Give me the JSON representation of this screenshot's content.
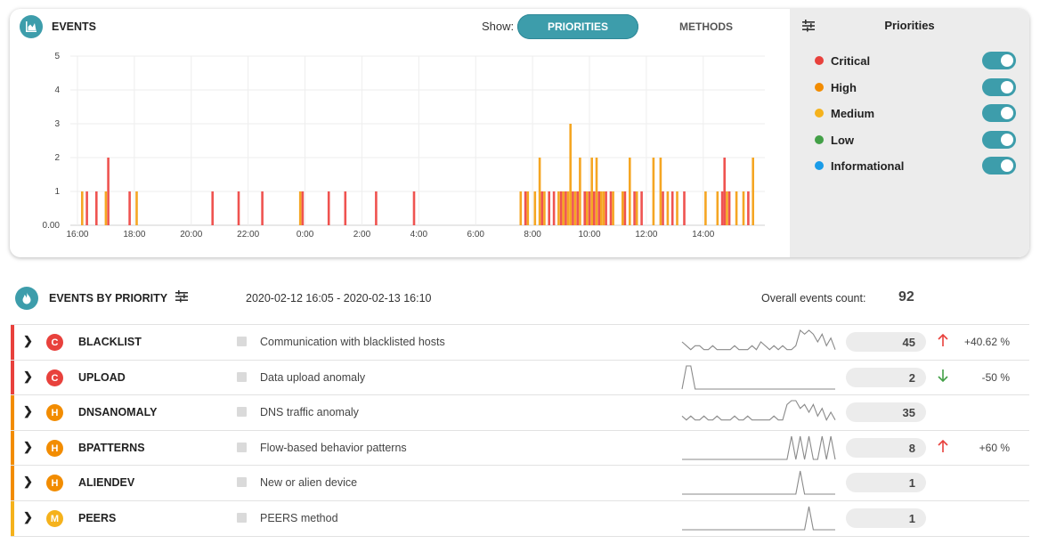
{
  "events_card": {
    "title": "EVENTS",
    "show_label": "Show:",
    "toggle_priorities": "PRIORITIES",
    "toggle_methods": "METHODS",
    "panel_title": "Priorities",
    "priorities": [
      {
        "label": "Critical",
        "color": "#e8413c",
        "enabled": true
      },
      {
        "label": "High",
        "color": "#f28c00",
        "enabled": true
      },
      {
        "label": "Medium",
        "color": "#f5b21c",
        "enabled": true
      },
      {
        "label": "Low",
        "color": "#43a047",
        "enabled": true
      },
      {
        "label": "Informational",
        "color": "#1a9ce8",
        "enabled": true
      }
    ]
  },
  "chart_data": {
    "type": "bar",
    "stacked": true,
    "title": "",
    "xlabel": "",
    "ylabel": "",
    "ylim": [
      0,
      5
    ],
    "y_ticks": [
      "0.00",
      "1",
      "2",
      "3",
      "4",
      "5"
    ],
    "x_ticks": [
      "18:00",
      "20:00",
      "22:00",
      "0:00",
      "2:00",
      "4:00",
      "6:00",
      "8:00",
      "10:00",
      "12:00",
      "14:00",
      "16:00"
    ],
    "grid": true,
    "series": [
      {
        "name": "Critical",
        "color": "#ef5350",
        "x": [
          "16:20",
          "16:40",
          "17:05",
          "17:50",
          "20:45",
          "21:40",
          "22:30",
          "23:55",
          "0:50",
          "1:25",
          "2:30",
          "3:50",
          "7:45",
          "8:20",
          "8:35",
          "8:45",
          "9:00",
          "9:10",
          "9:25",
          "9:35",
          "9:50",
          "10:00",
          "10:10",
          "10:20",
          "10:35",
          "10:45",
          "11:15",
          "11:35",
          "11:50",
          "12:35",
          "12:55",
          "13:20",
          "14:40",
          "14:45",
          "14:55",
          "15:35"
        ],
        "y": [
          1,
          1,
          2,
          1,
          1,
          1,
          1,
          1,
          1,
          1,
          1,
          1,
          1,
          1,
          1,
          1,
          1,
          1,
          1,
          1,
          1,
          1,
          1,
          1,
          1,
          1,
          1,
          1,
          1,
          1,
          1,
          1,
          1,
          2,
          1,
          1
        ]
      },
      {
        "name": "Medium",
        "color": "#f5a623",
        "x": [
          "16:10",
          "17:00",
          "18:05",
          "23:50",
          "7:35",
          "7:50",
          "8:05",
          "8:15",
          "8:25",
          "8:55",
          "9:05",
          "9:15",
          "9:20",
          "9:30",
          "9:40",
          "9:55",
          "10:05",
          "10:15",
          "10:25",
          "10:30",
          "10:50",
          "11:10",
          "11:25",
          "11:40",
          "12:15",
          "12:30",
          "12:45",
          "13:05",
          "14:05",
          "14:30",
          "14:50",
          "15:10",
          "15:25",
          "15:45"
        ],
        "y": [
          1,
          1,
          1,
          1,
          1,
          1,
          1,
          2,
          1,
          1,
          1,
          1,
          3,
          1,
          2,
          1,
          2,
          2,
          1,
          1,
          1,
          1,
          2,
          1,
          2,
          2,
          1,
          1,
          1,
          1,
          1,
          1,
          1,
          2
        ]
      }
    ],
    "totals_hint": "stack height per bar = sum of series at same x"
  },
  "priority_section": {
    "title": "EVENTS BY PRIORITY",
    "date_range": "2020-02-12 16:05 - 2020-02-13 16:10",
    "count_label": "Overall events count:",
    "count_value": "92"
  },
  "rows": [
    {
      "name": "BLACKLIST",
      "badge": "C",
      "badge_color": "#e8413c",
      "bar_color": "#e8413c",
      "description": "Communication with blacklisted hosts",
      "count": "45",
      "trend": "up",
      "trend_color": "#e8413c",
      "change": "+40.62 %",
      "spark": [
        3,
        2,
        1,
        2,
        2,
        1,
        1,
        2,
        1,
        1,
        1,
        1,
        2,
        1,
        1,
        1,
        2,
        1,
        3,
        2,
        1,
        2,
        1,
        2,
        1,
        1,
        2,
        6,
        5,
        6,
        5,
        3,
        5,
        2,
        4,
        1
      ]
    },
    {
      "name": "UPLOAD",
      "badge": "C",
      "badge_color": "#e8413c",
      "bar_color": "#e8413c",
      "description": "Data upload anomaly",
      "count": "2",
      "trend": "down",
      "trend_color": "#43a047",
      "change": "-50 %",
      "spark": [
        0,
        6,
        6,
        0,
        0,
        0,
        0,
        0,
        0,
        0,
        0,
        0,
        0,
        0,
        0,
        0,
        0,
        0,
        0,
        0,
        0,
        0,
        0,
        0,
        0,
        0,
        0,
        0,
        0,
        0,
        0,
        0,
        0,
        0,
        0,
        0
      ]
    },
    {
      "name": "DNSANOMALY",
      "badge": "H",
      "badge_color": "#f28c00",
      "bar_color": "#f28c00",
      "description": "DNS traffic anomaly",
      "count": "35",
      "trend": "",
      "trend_color": "",
      "change": "",
      "spark": [
        2,
        1,
        2,
        1,
        1,
        2,
        1,
        1,
        2,
        1,
        1,
        1,
        2,
        1,
        1,
        2,
        1,
        1,
        1,
        1,
        1,
        2,
        1,
        1,
        5,
        6,
        6,
        4,
        5,
        3,
        5,
        2,
        4,
        1,
        3,
        1
      ]
    },
    {
      "name": "BPATTERNS",
      "badge": "H",
      "badge_color": "#f28c00",
      "bar_color": "#f28c00",
      "description": "Flow-based behavior patterns",
      "count": "8",
      "trend": "up",
      "trend_color": "#e8413c",
      "change": "+60 %",
      "spark": [
        0,
        0,
        0,
        0,
        0,
        0,
        0,
        0,
        0,
        0,
        0,
        0,
        0,
        0,
        0,
        0,
        0,
        0,
        0,
        0,
        0,
        0,
        0,
        0,
        0,
        6,
        0,
        6,
        0,
        6,
        0,
        0,
        6,
        0,
        6,
        0
      ]
    },
    {
      "name": "ALIENDEV",
      "badge": "H",
      "badge_color": "#f28c00",
      "bar_color": "#f28c00",
      "description": "New or alien device",
      "count": "1",
      "trend": "",
      "trend_color": "",
      "change": "",
      "spark": [
        0,
        0,
        0,
        0,
        0,
        0,
        0,
        0,
        0,
        0,
        0,
        0,
        0,
        0,
        0,
        0,
        0,
        0,
        0,
        0,
        0,
        0,
        0,
        0,
        0,
        0,
        0,
        6,
        0,
        0,
        0,
        0,
        0,
        0,
        0,
        0
      ]
    },
    {
      "name": "PEERS",
      "badge": "M",
      "badge_color": "#f5b21c",
      "bar_color": "#f5b21c",
      "description": "PEERS method",
      "count": "1",
      "trend": "",
      "trend_color": "",
      "change": "",
      "spark": [
        0,
        0,
        0,
        0,
        0,
        0,
        0,
        0,
        0,
        0,
        0,
        0,
        0,
        0,
        0,
        0,
        0,
        0,
        0,
        0,
        0,
        0,
        0,
        0,
        0,
        0,
        0,
        0,
        0,
        6,
        0,
        0,
        0,
        0,
        0,
        0
      ]
    }
  ]
}
